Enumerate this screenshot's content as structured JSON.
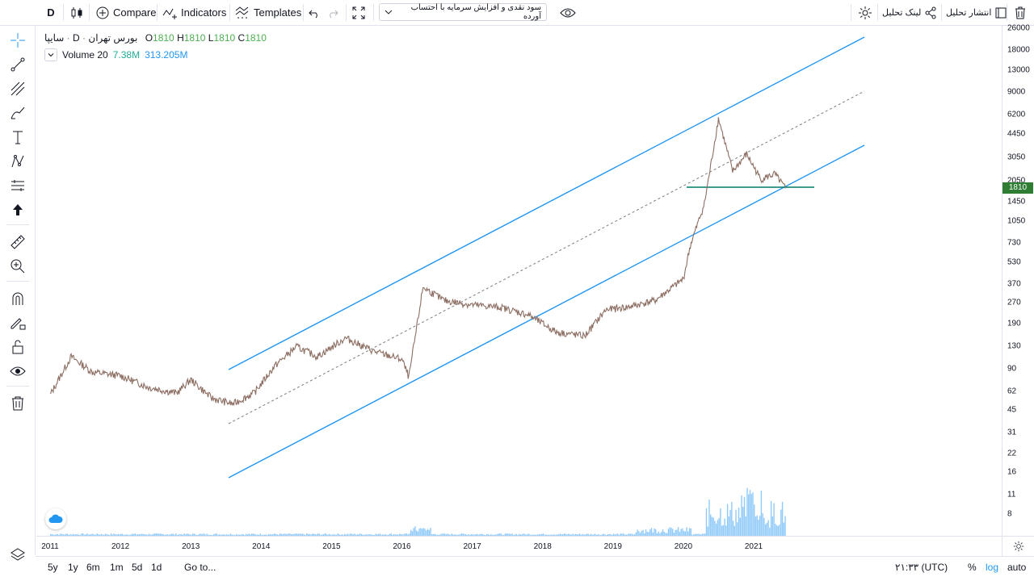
{
  "toolbar": {
    "interval": "D",
    "compare": "Compare",
    "indicators": "Indicators",
    "templates": "Templates",
    "study_select": "سود نقدی و افزایش سرمایه با احتساب آورده",
    "share_link": "لینک تحلیل",
    "publish": "انتشار تحلیل"
  },
  "legend": {
    "symbol": "سایپا",
    "interval": "D",
    "exchange": "بورس تهران",
    "o_key": "O",
    "o_val": "1810",
    "h_key": "H",
    "h_val": "1810",
    "l_key": "L",
    "l_val": "1810",
    "c_key": "C",
    "c_val": "1810",
    "volume_label": "Volume 20",
    "volume_val": "7.38M",
    "volume_ma": "313.205M"
  },
  "price_scale": {
    "ticks": [
      "26000",
      "18000",
      "13000",
      "9000",
      "6200",
      "4450",
      "3050",
      "2050",
      "1450",
      "1050",
      "730",
      "530",
      "370",
      "270",
      "190",
      "130",
      "90",
      "62",
      "45",
      "31",
      "22",
      "16",
      "11",
      "8"
    ],
    "current": "1810",
    "current_color": "#2e7d32"
  },
  "time_scale": {
    "ticks": [
      "2011",
      "2012",
      "2013",
      "2014",
      "2015",
      "2016",
      "2017",
      "2018",
      "2019",
      "2020",
      "2021"
    ]
  },
  "bottom": {
    "ranges": [
      "5y",
      "1y",
      "6m",
      "1m",
      "5d",
      "1d"
    ],
    "goto": "Go to...",
    "clock": "۲۱:۳۳ (UTC)",
    "percent": "%",
    "log": "log",
    "auto": "auto"
  },
  "colors": {
    "channel": "#2196f3",
    "candle": "#8d6e63",
    "support": "#00796b",
    "volume": "#90caf9"
  },
  "chart_data": {
    "type": "line",
    "title": "",
    "scale": "log",
    "x": [
      2011.0,
      2011.3,
      2011.6,
      2012.0,
      2012.4,
      2012.8,
      2013.0,
      2013.3,
      2013.6,
      2013.9,
      2014.2,
      2014.5,
      2014.8,
      2015.2,
      2015.6,
      2016.0,
      2016.1,
      2016.3,
      2016.6,
      2017.0,
      2017.4,
      2017.8,
      2018.2,
      2018.6,
      2018.9,
      2019.2,
      2019.6,
      2020.0,
      2020.1,
      2020.3,
      2020.5,
      2020.7,
      2020.9,
      2021.1,
      2021.3,
      2021.45
    ],
    "y": [
      58,
      110,
      85,
      80,
      66,
      60,
      75,
      55,
      50,
      60,
      95,
      130,
      110,
      150,
      120,
      105,
      78,
      350,
      280,
      260,
      250,
      220,
      165,
      155,
      240,
      250,
      280,
      400,
      700,
      1400,
      5800,
      2400,
      3200,
      2100,
      2300,
      1810
    ],
    "price_range": [
      8,
      26000
    ]
  }
}
